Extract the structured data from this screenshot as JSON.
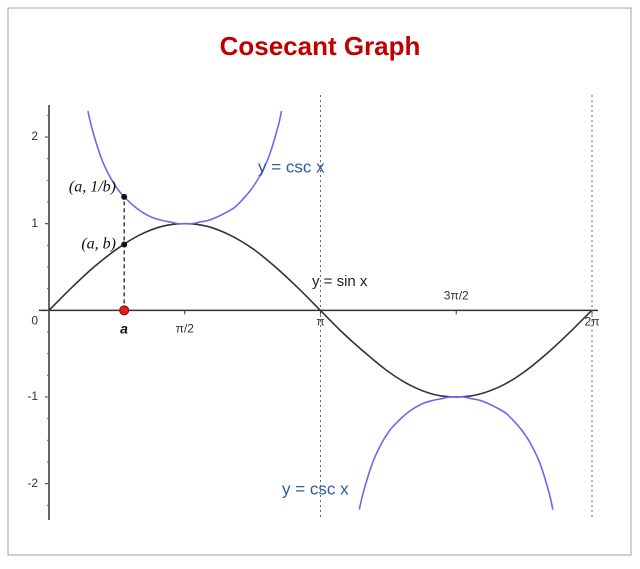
{
  "chart_data": {
    "type": "line",
    "title": "Cosecant Graph",
    "xlim": [
      0,
      6.2832
    ],
    "ylim": [
      -2.42,
      2.37
    ],
    "xticks": [
      {
        "value": 1.5708,
        "label": "π/2"
      },
      {
        "value": 3.1416,
        "label": "π"
      },
      {
        "value": 4.7124,
        "label": "3π/2"
      },
      {
        "value": 6.2832,
        "label": "2π"
      }
    ],
    "yticks": [
      -2,
      -1,
      0,
      1,
      2
    ],
    "series": [
      {
        "name": "y = sin x",
        "color": "#333333",
        "x": [
          0,
          0.26,
          0.52,
          0.79,
          1.05,
          1.31,
          1.57,
          1.83,
          2.09,
          2.36,
          2.62,
          2.88,
          3.14,
          3.4,
          3.67,
          3.93,
          4.19,
          4.45,
          4.71,
          4.97,
          5.24,
          5.5,
          5.76,
          6.02,
          6.28
        ],
        "values": [
          0,
          0.26,
          0.5,
          0.71,
          0.87,
          0.97,
          1,
          0.97,
          0.87,
          0.71,
          0.5,
          0.26,
          0,
          -0.26,
          -0.5,
          -0.71,
          -0.87,
          -0.97,
          -1,
          -0.97,
          -0.87,
          -0.71,
          -0.5,
          -0.26,
          0
        ]
      },
      {
        "name": "y = csc x",
        "color": "#6a6af0",
        "x": [
          0.45,
          0.5,
          0.6,
          0.7,
          0.8,
          0.9,
          1.0,
          1.1,
          1.2,
          1.3,
          1.4,
          1.5,
          1.57,
          1.65,
          1.75,
          1.85,
          1.95,
          2.05,
          2.15,
          2.25,
          2.35,
          2.45,
          2.55,
          2.65,
          2.69,
          3.14,
          3.59,
          3.64,
          3.74,
          3.84,
          3.94,
          4.04,
          4.14,
          4.24,
          4.34,
          4.44,
          4.54,
          4.64,
          4.71,
          4.79,
          4.89,
          4.99,
          5.09,
          5.19,
          5.29,
          5.39,
          5.49,
          5.59,
          5.69,
          5.79,
          5.83
        ],
        "values": [
          2.3,
          2.09,
          1.77,
          1.55,
          1.39,
          1.28,
          1.19,
          1.12,
          1.07,
          1.04,
          1.02,
          1.0,
          1.0,
          1.0,
          1.02,
          1.04,
          1.08,
          1.13,
          1.19,
          1.29,
          1.41,
          1.57,
          1.79,
          2.12,
          2.3,
          null,
          -2.3,
          -2.09,
          -1.77,
          -1.55,
          -1.39,
          -1.28,
          -1.19,
          -1.12,
          -1.07,
          -1.04,
          -1.02,
          -1.0,
          -1.0,
          -1.0,
          -1.02,
          -1.04,
          -1.08,
          -1.13,
          -1.19,
          -1.29,
          -1.41,
          -1.57,
          -1.79,
          -2.12,
          -2.3
        ]
      }
    ],
    "annotations": [
      "y = csc x"
    ],
    "points": [
      {
        "label": "(a, 1/b)",
        "x": 0.87,
        "y": 1.31,
        "color": "#111111"
      },
      {
        "label": "(a, b)",
        "x": 0.87,
        "y": 0.76,
        "color": "#111111"
      },
      {
        "label": "a",
        "x": 0.87,
        "y": 0,
        "color": "#e02020"
      }
    ]
  }
}
